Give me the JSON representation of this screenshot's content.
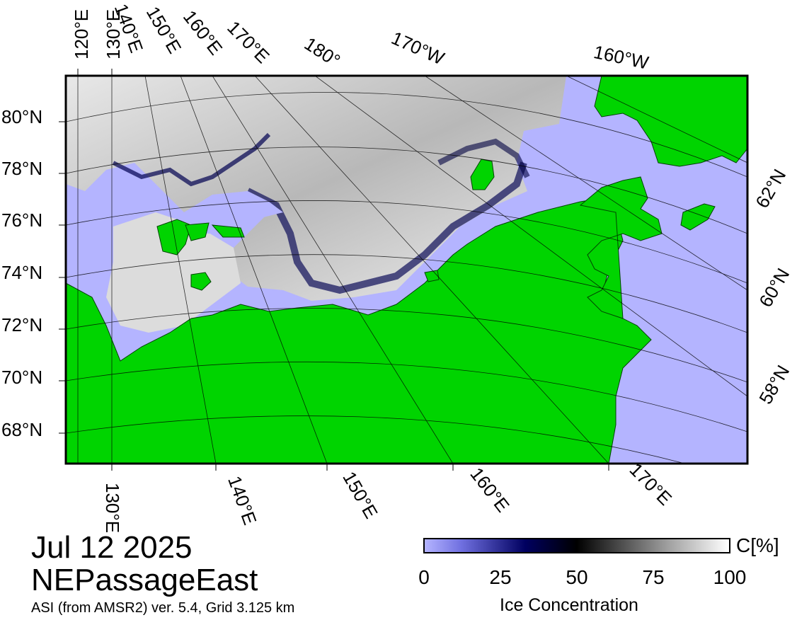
{
  "title": {
    "date": "Jul 12 2025",
    "region": "NEPassageEast",
    "credit": "ASI (from AMSR2) ver. 5.4,  Grid 3.125 km"
  },
  "colors": {
    "ocean": "#b4b4ff",
    "land": "#00d400",
    "ice_low": "#00007a",
    "ice_high": "#ffffff",
    "frame": "#000000"
  },
  "top_lon_labels": [
    "120°E",
    "130°E",
    "140°E",
    "150°E",
    "160°E",
    "170°E",
    "180°",
    "170°W",
    "160°W"
  ],
  "left_lat_labels": [
    "80°N",
    "78°N",
    "76°N",
    "74°N",
    "72°N",
    "70°N",
    "68°N"
  ],
  "right_lat_labels": [
    "62°N",
    "60°N",
    "58°N"
  ],
  "bottom_lon_labels": [
    "130°E",
    "140°E",
    "150°E",
    "160°E",
    "170°E"
  ],
  "colorbar": {
    "title": "Ice Concentration",
    "unit": "C[%]",
    "ticks": [
      "0",
      "25",
      "50",
      "75",
      "100"
    ]
  }
}
